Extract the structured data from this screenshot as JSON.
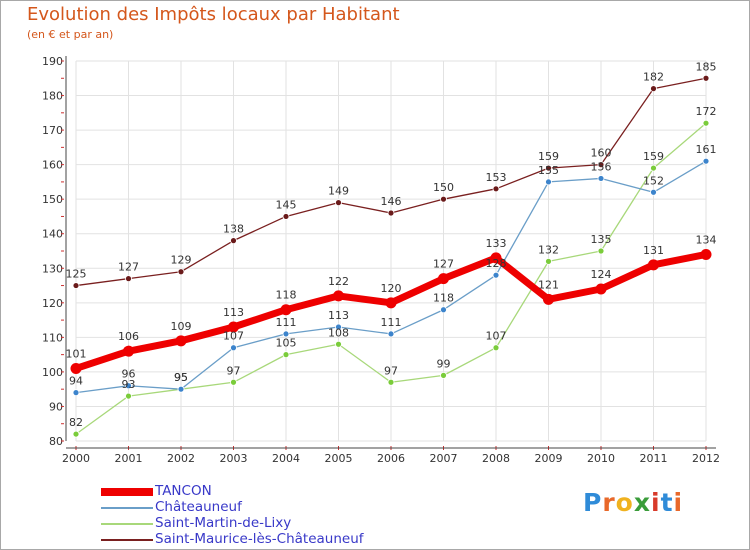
{
  "title": "Evolution des Impôts locaux par Habitant",
  "subtitle": "(en € et par an)",
  "logo": {
    "text": "Proxiti",
    "colors": [
      "#2f8bd8",
      "#e8682a",
      "#f0b21f",
      "#3a9c3a",
      "#d83a2a",
      "#2f8bd8",
      "#e8682a"
    ]
  },
  "chart_data": {
    "type": "line",
    "title": "Evolution des Impôts locaux par Habitant",
    "subtitle": "(en € et par an)",
    "xlabel": "",
    "ylabel": "",
    "x": [
      2000,
      2001,
      2002,
      2003,
      2004,
      2005,
      2006,
      2007,
      2008,
      2009,
      2010,
      2011,
      2012
    ],
    "ylim": [
      80,
      190
    ],
    "yticks": [
      80,
      90,
      100,
      110,
      120,
      130,
      140,
      150,
      160,
      170,
      180,
      190
    ],
    "grid": true,
    "legend_position": "bottom-left",
    "series": [
      {
        "name": "Saint-Maurice-lès-Châteauneuf",
        "color": "#7a2020",
        "marker": "#6a1a1a",
        "values": [
          125,
          127,
          129,
          138,
          145,
          149,
          146,
          150,
          153,
          159,
          160,
          182,
          185
        ]
      },
      {
        "name": "Saint-Martin-de-Lixy",
        "color": "#a8d87a",
        "marker": "#7acc3a",
        "values": [
          82,
          93,
          95,
          97,
          105,
          108,
          97,
          99,
          107,
          132,
          135,
          159,
          172
        ]
      },
      {
        "name": "Châteauneuf",
        "color": "#6a9ec8",
        "marker": "#3c84cc",
        "values": [
          94,
          96,
          95,
          107,
          111,
          113,
          111,
          118,
          128,
          155,
          156,
          152,
          161
        ]
      },
      {
        "name": "TANCON",
        "color": "#ee0000",
        "marker": "#ee0000",
        "values": [
          101,
          106,
          109,
          113,
          118,
          122,
          120,
          127,
          133,
          121,
          124,
          131,
          134
        ]
      }
    ]
  },
  "legend": [
    {
      "label": "TANCON",
      "color": "#ee0000"
    },
    {
      "label": "Châteauneuf",
      "color": "#6a9ec8"
    },
    {
      "label": "Saint-Martin-de-Lixy",
      "color": "#a8d87a"
    },
    {
      "label": "Saint-Maurice-lès-Châteauneuf",
      "color": "#7a2020"
    }
  ]
}
